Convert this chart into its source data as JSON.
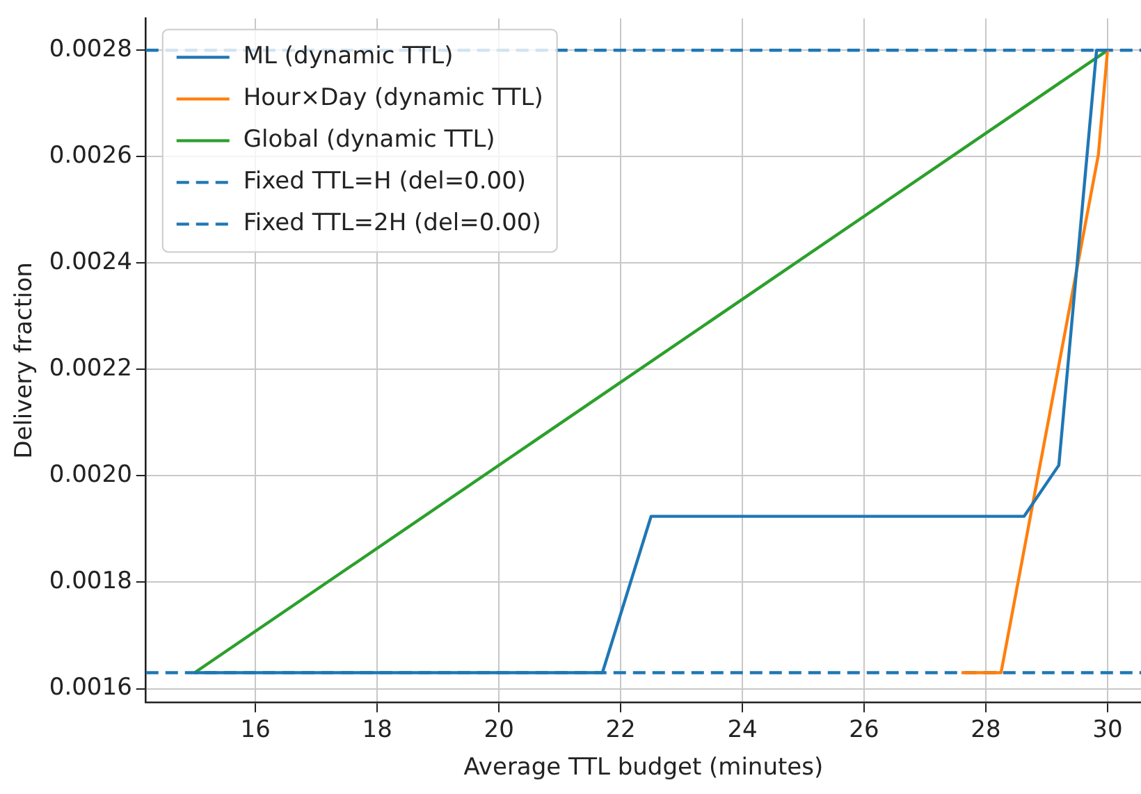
{
  "chart_data": {
    "type": "line",
    "xlabel": "Average TTL budget (minutes)",
    "ylabel": "Delivery fraction",
    "xlim": [
      14.2,
      30.55
    ],
    "xticks": [
      16,
      18,
      20,
      22,
      24,
      26,
      28,
      30
    ],
    "ylim": [
      0.001574,
      0.00286
    ],
    "yticks": [
      0.0016,
      0.0018,
      {
        "value": 0.002,
        "label": "0.0020"
      },
      0.0022,
      0.0024,
      0.0026,
      0.0028
    ],
    "grid": true,
    "legend": "top left",
    "marker": "none",
    "series": [
      {
        "name": "ML (dynamic TTL)",
        "color": "#1f77b4",
        "line_style": "solid",
        "x": [
          15,
          21.7,
          22.5,
          28.63,
          29.2,
          29.82,
          30
        ],
        "values": [
          0.00163,
          0.00163,
          0.001924,
          0.001924,
          0.00202,
          0.0028,
          0.0028
        ]
      },
      {
        "name": "Hour×Day (dynamic TTL)",
        "color": "#ff7f0e",
        "line_style": "solid",
        "x": [
          27.6,
          28.25,
          29.85,
          30
        ],
        "values": [
          0.00163,
          0.00163,
          0.002604,
          0.0028
        ]
      },
      {
        "name": "Global (dynamic TTL)",
        "color": "#2ca02c",
        "line_style": "solid",
        "x": [
          15,
          30
        ],
        "values": [
          0.00163,
          0.0028
        ]
      },
      {
        "name": "Fixed TTL=H (del=0.00)",
        "color": "#1f77b4",
        "line_style": "dashed",
        "x": [
          14.2,
          30.55
        ],
        "values": [
          0.00163,
          0.00163
        ]
      },
      {
        "name": "Fixed TTL=2H (del=0.00)",
        "color": "#1f77b4",
        "line_style": "dashed",
        "x": [
          14.2,
          30.55
        ],
        "values": [
          0.0028,
          0.0028
        ]
      }
    ]
  }
}
